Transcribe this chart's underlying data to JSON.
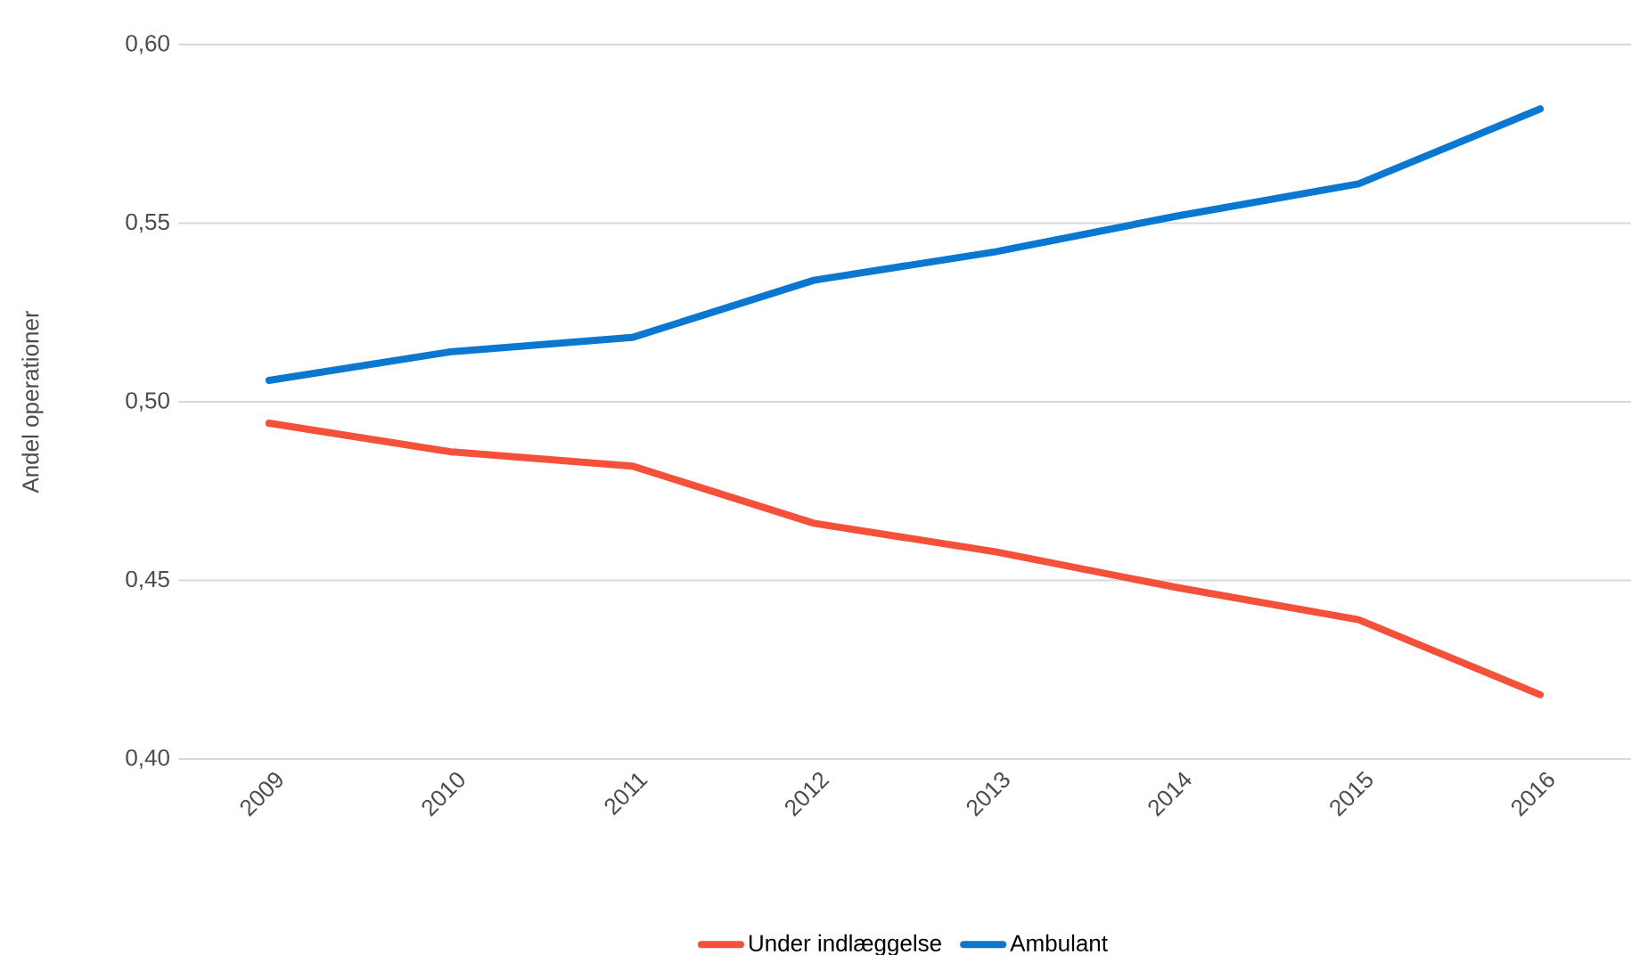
{
  "chart_data": {
    "type": "line",
    "ylabel": "Andel operationer",
    "categories": [
      "2009",
      "2010",
      "2011",
      "2012",
      "2013",
      "2014",
      "2015",
      "2016"
    ],
    "series": [
      {
        "name": "Under indlæggelse",
        "color": "#f4503a",
        "values": [
          0.494,
          0.486,
          0.482,
          0.466,
          0.458,
          0.448,
          0.439,
          0.418
        ]
      },
      {
        "name": "Ambulant",
        "color": "#0a77d1",
        "values": [
          0.506,
          0.514,
          0.518,
          0.534,
          0.542,
          0.552,
          0.561,
          0.582
        ]
      }
    ],
    "ylim": [
      0.4,
      0.6
    ],
    "yticks": [
      {
        "value": 0.4,
        "label": "0,40"
      },
      {
        "value": 0.45,
        "label": "0,45"
      },
      {
        "value": 0.5,
        "label": "0,50"
      },
      {
        "value": 0.55,
        "label": "0,55"
      },
      {
        "value": 0.6,
        "label": "0,60"
      }
    ],
    "grid": "y",
    "legend": "bottom",
    "marker": "none",
    "line_style": "solid"
  }
}
